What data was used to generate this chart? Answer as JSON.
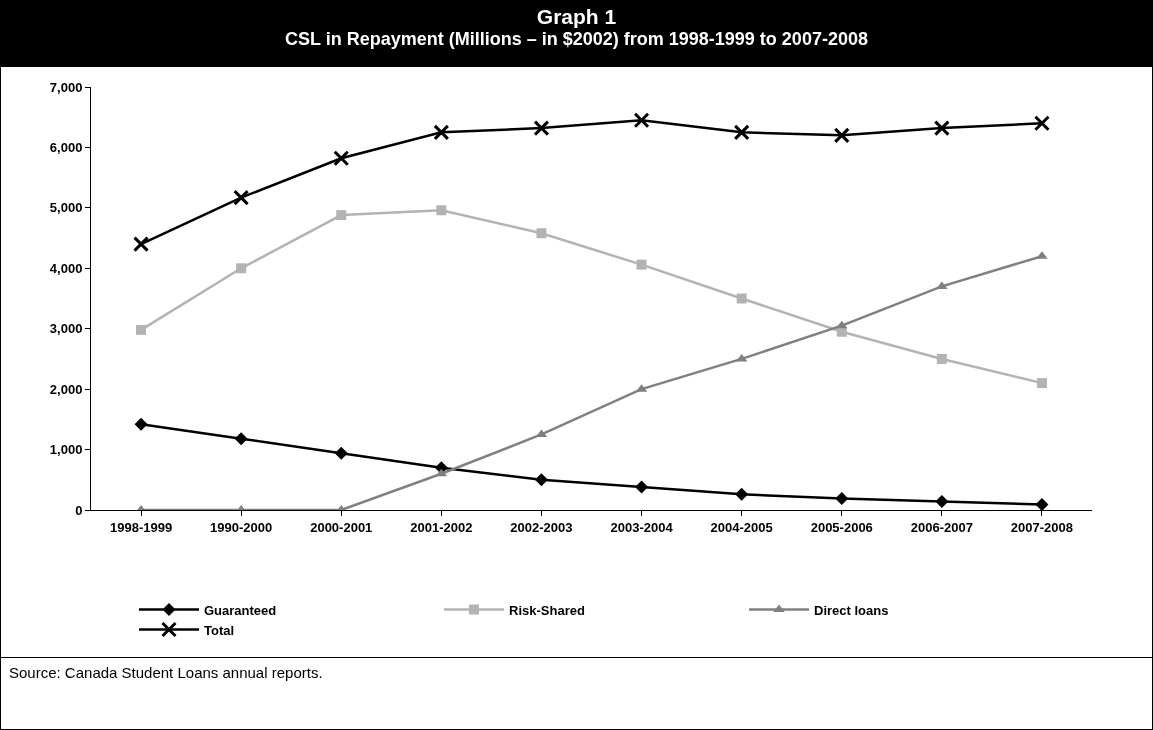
{
  "chart_data": {
    "type": "line",
    "title": "Graph 1",
    "subtitle": "CSL in Repayment (Millions – in $2002) from 1998-1999 to 2007-2008",
    "categories": [
      "1998-1999",
      "1990-2000",
      "2000-2001",
      "2001-2002",
      "2002-2003",
      "2003-2004",
      "2004-2005",
      "2005-2006",
      "2006-2007",
      "2007-2008"
    ],
    "series": [
      {
        "name": "Guaranteed",
        "color": "#000000",
        "marker": "diamond",
        "values": [
          1420,
          1180,
          940,
          700,
          500,
          380,
          260,
          190,
          140,
          90
        ]
      },
      {
        "name": "Risk-Shared",
        "color": "#b3b3b3",
        "marker": "square",
        "values": [
          2980,
          4000,
          4880,
          4960,
          4580,
          4060,
          3500,
          2950,
          2500,
          2100
        ]
      },
      {
        "name": "Direct loans",
        "color": "#808080",
        "marker": "triangle",
        "values": [
          0,
          0,
          0,
          600,
          1250,
          2000,
          2500,
          3050,
          3700,
          4200
        ]
      },
      {
        "name": "Total",
        "color": "#000000",
        "marker": "cross",
        "values": [
          4400,
          5170,
          5820,
          6250,
          6320,
          6450,
          6250,
          6200,
          6320,
          6400
        ]
      }
    ],
    "ylim": [
      0,
      7000
    ],
    "yticks": [
      0,
      {
        "value": 1000,
        "label": "1,000"
      },
      {
        "value": 2000,
        "label": "2,000"
      },
      {
        "value": 3000,
        "label": "3,000"
      },
      {
        "value": 4000,
        "label": "4,000"
      },
      {
        "value": 5000,
        "label": "5,000"
      },
      {
        "value": 6000,
        "label": "6,000"
      },
      {
        "value": 7000,
        "label": "7,000"
      }
    ],
    "grid": false,
    "legend": "bottom",
    "line_style": "solid",
    "annotations": [
      "Source: Canada Student Loans annual reports."
    ]
  }
}
